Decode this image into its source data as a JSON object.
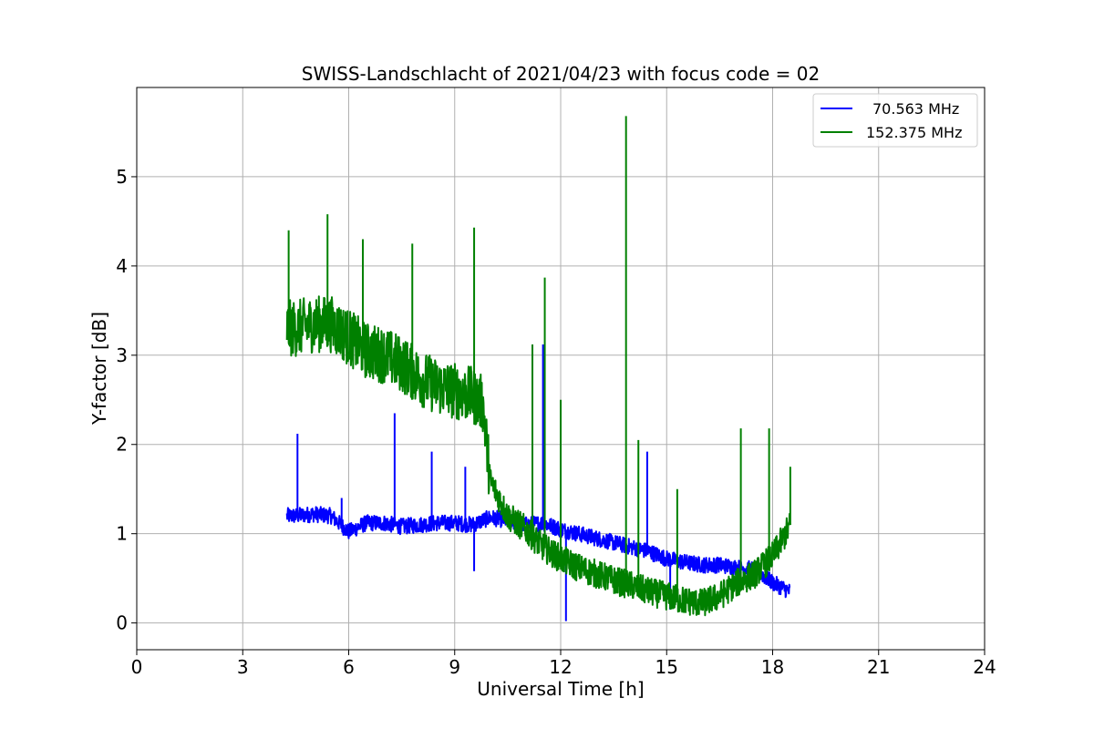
{
  "chart_data": {
    "type": "line",
    "title": "SWISS-Landschlacht of 2021/04/23 with focus code = 02",
    "xlabel": "Universal Time [h]",
    "ylabel": "Y-factor [dB]",
    "xlim": [
      0,
      24
    ],
    "ylim": [
      -0.3,
      6.0
    ],
    "xticks": [
      "0",
      "3",
      "6",
      "9",
      "12",
      "15",
      "18",
      "21",
      "24"
    ],
    "yticks": [
      "0",
      "1",
      "2",
      "3",
      "4",
      "5"
    ],
    "grid": true,
    "legend_position": "top-right",
    "series": [
      {
        "name": "70.563 MHz",
        "color": "#0000ff",
        "x": [
          4.25,
          4.5,
          5.0,
          5.5,
          6.0,
          6.5,
          7.0,
          7.5,
          8.0,
          8.5,
          9.0,
          9.5,
          10.0,
          10.5,
          11.0,
          11.5,
          12.0,
          12.5,
          13.0,
          13.5,
          14.0,
          14.5,
          15.0,
          15.5,
          16.0,
          16.5,
          17.0,
          17.5,
          18.0,
          18.5
        ],
        "values": [
          1.2,
          1.2,
          1.22,
          1.2,
          1.02,
          1.12,
          1.12,
          1.08,
          1.1,
          1.12,
          1.12,
          1.1,
          1.18,
          1.15,
          1.1,
          1.12,
          1.05,
          1.0,
          0.95,
          0.9,
          0.85,
          0.8,
          0.72,
          0.68,
          0.65,
          0.65,
          0.62,
          0.6,
          0.45,
          0.35
        ],
        "spikes": [
          [
            4.55,
            2.12
          ],
          [
            5.8,
            1.4
          ],
          [
            7.3,
            2.35
          ],
          [
            8.35,
            1.92
          ],
          [
            9.3,
            1.75
          ],
          [
            9.55,
            0.58
          ],
          [
            11.5,
            3.12
          ],
          [
            12.15,
            0.02
          ],
          [
            14.45,
            1.92
          ],
          [
            15.1,
            0.15
          ]
        ]
      },
      {
        "name": "152.375 MHz",
        "color": "#008000",
        "x": [
          4.25,
          4.5,
          5.0,
          5.5,
          6.0,
          6.5,
          7.0,
          7.5,
          8.0,
          8.5,
          9.0,
          9.5,
          9.8,
          10.0,
          10.5,
          11.0,
          11.5,
          12.0,
          12.5,
          13.0,
          13.5,
          14.0,
          14.5,
          15.0,
          15.5,
          16.0,
          16.5,
          17.0,
          17.5,
          18.0,
          18.3,
          18.5
        ],
        "values": [
          3.3,
          3.3,
          3.35,
          3.35,
          3.2,
          3.05,
          3.0,
          2.9,
          2.75,
          2.65,
          2.6,
          2.55,
          2.45,
          1.6,
          1.2,
          1.05,
          0.85,
          0.72,
          0.62,
          0.55,
          0.48,
          0.42,
          0.35,
          0.3,
          0.25,
          0.22,
          0.3,
          0.45,
          0.55,
          0.75,
          0.95,
          1.1
        ],
        "spikes": [
          [
            4.3,
            4.4
          ],
          [
            5.4,
            4.58
          ],
          [
            6.4,
            4.3
          ],
          [
            7.8,
            4.25
          ],
          [
            9.55,
            4.43
          ],
          [
            11.2,
            3.12
          ],
          [
            11.55,
            3.87
          ],
          [
            12.0,
            2.5
          ],
          [
            13.85,
            5.68
          ],
          [
            14.2,
            2.05
          ],
          [
            15.3,
            1.5
          ],
          [
            17.1,
            2.18
          ],
          [
            17.9,
            2.18
          ],
          [
            18.5,
            1.75
          ]
        ]
      }
    ]
  }
}
